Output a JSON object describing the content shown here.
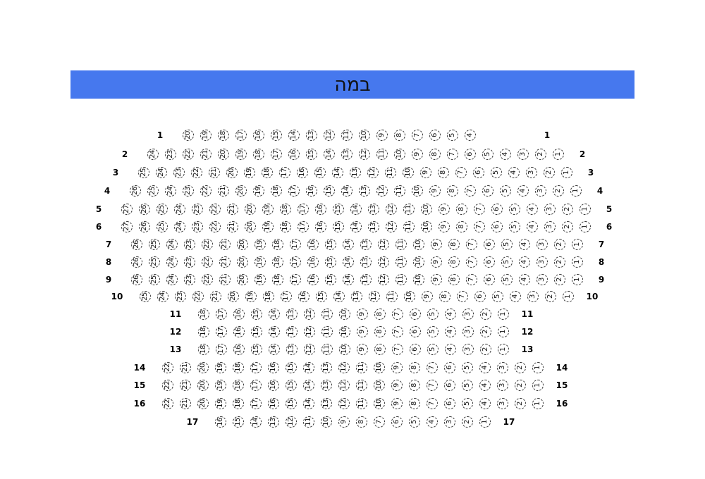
{
  "stage": {
    "label": "במה",
    "color": "#4678EE"
  },
  "rows": [
    {
      "label": "1",
      "seats_from": 20,
      "seats_to": 4
    },
    {
      "label": "2",
      "seats_from": 24,
      "seats_to": 1
    },
    {
      "label": "3",
      "seats_from": 25,
      "seats_to": 1
    },
    {
      "label": "4",
      "seats_from": 26,
      "seats_to": 1
    },
    {
      "label": "5",
      "seats_from": 27,
      "seats_to": 1
    },
    {
      "label": "6",
      "seats_from": 27,
      "seats_to": 1
    },
    {
      "label": "7",
      "seats_from": 26,
      "seats_to": 1
    },
    {
      "label": "8",
      "seats_from": 26,
      "seats_to": 1
    },
    {
      "label": "9",
      "seats_from": 26,
      "seats_to": 1
    },
    {
      "label": "10",
      "seats_from": 25,
      "seats_to": 1
    },
    {
      "label": "11",
      "seats_from": 18,
      "seats_to": 1
    },
    {
      "label": "12",
      "seats_from": 18,
      "seats_to": 1
    },
    {
      "label": "13",
      "seats_from": 18,
      "seats_to": 1
    },
    {
      "label": "14",
      "seats_from": 22,
      "seats_to": 1
    },
    {
      "label": "15",
      "seats_from": 22,
      "seats_to": 1
    },
    {
      "label": "16",
      "seats_from": 22,
      "seats_to": 1
    },
    {
      "label": "17",
      "seats_from": 16,
      "seats_to": 1
    }
  ]
}
